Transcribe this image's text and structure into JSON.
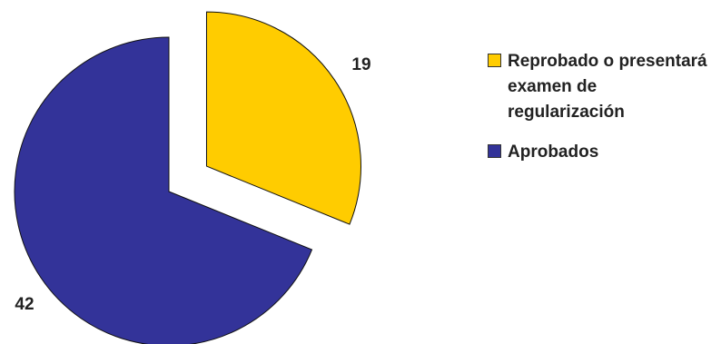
{
  "chart_data": {
    "type": "pie",
    "title": "",
    "slices": [
      {
        "label": "Reprobado o presentará examen de regularización",
        "value": 19,
        "color": "#FFCC00",
        "exploded": true
      },
      {
        "label": "Aprobados",
        "value": 42,
        "color": "#333399",
        "exploded": false
      }
    ],
    "data_labels": [
      "19",
      "42"
    ],
    "legend_position": "right"
  }
}
